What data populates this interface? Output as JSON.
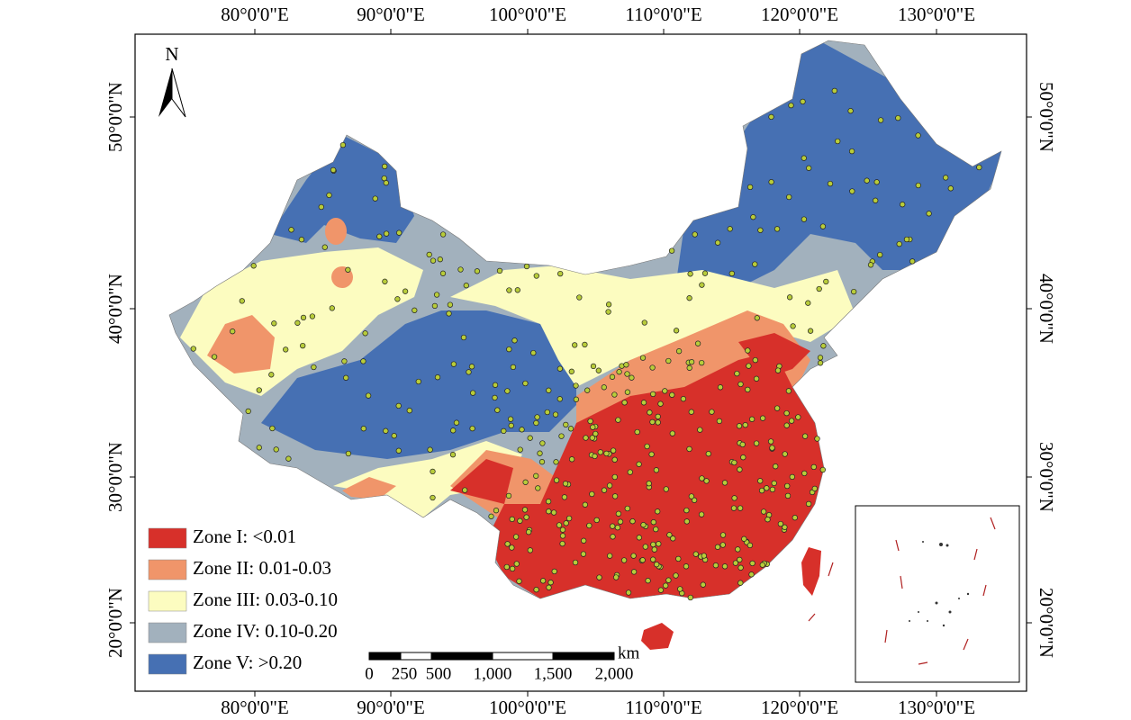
{
  "map": {
    "north_label": "N",
    "top_axis_labels": [
      "80°0'0\"E",
      "90°0'0\"E",
      "100°0'0\"E",
      "110°0'0\"E",
      "120°0'0\"E",
      "130°0'0\"E"
    ],
    "bottom_axis_labels": [
      "80°0'0\"E",
      "90°0'0\"E",
      "100°0'0\"E",
      "110°0'0\"E",
      "120°0'0\"E",
      "130°0'0\"E"
    ],
    "left_axis_labels": [
      "50°0'0\"N",
      "40°0'0\"N",
      "30°0'0\"N",
      "20°0'0\"N"
    ],
    "right_axis_labels": [
      "50°0'0\"N",
      "40°0'0\"N",
      "30°0'0\"N",
      "20°0'0\"N"
    ],
    "legend": [
      {
        "label": "Zone I: <0.01",
        "color": "#d7302a"
      },
      {
        "label": "Zone II: 0.01-0.03",
        "color": "#f0956a"
      },
      {
        "label": "Zone III: 0.03-0.10",
        "color": "#fcfcc0"
      },
      {
        "label": "Zone IV: 0.10-0.20",
        "color": "#a2b1bd"
      },
      {
        "label": "Zone V: >0.20",
        "color": "#4670b3"
      }
    ],
    "scale_bar": {
      "labels": [
        "0",
        "250",
        "500",
        "1,000",
        "1,500",
        "2,000"
      ],
      "unit": "km"
    }
  }
}
